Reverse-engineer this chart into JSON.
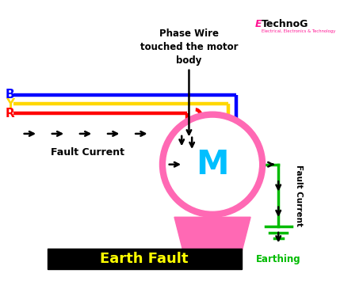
{
  "bg_color": "#ffffff",
  "title_text": "Earth Fault",
  "title_bg": "#000000",
  "title_color": "#ffff00",
  "motor_color": "#ff69b4",
  "motor_letter_color": "#00bfff",
  "wire_B_color": "#0000ff",
  "wire_Y_color": "#ffd700",
  "wire_R_color": "#ff0000",
  "earth_color": "#00bb00",
  "arrow_color": "#000000",
  "label_B": "B",
  "label_Y": "Y",
  "label_R": "R",
  "label_fault_current": "Fault Current",
  "label_phase_wire": "Phase Wire\ntouched the motor\nbody",
  "label_earthing": "Earthing",
  "label_fault_current_right": "Fault Current",
  "logo_E_color": "#ff1493",
  "logo_sub_color": "#ff1493"
}
